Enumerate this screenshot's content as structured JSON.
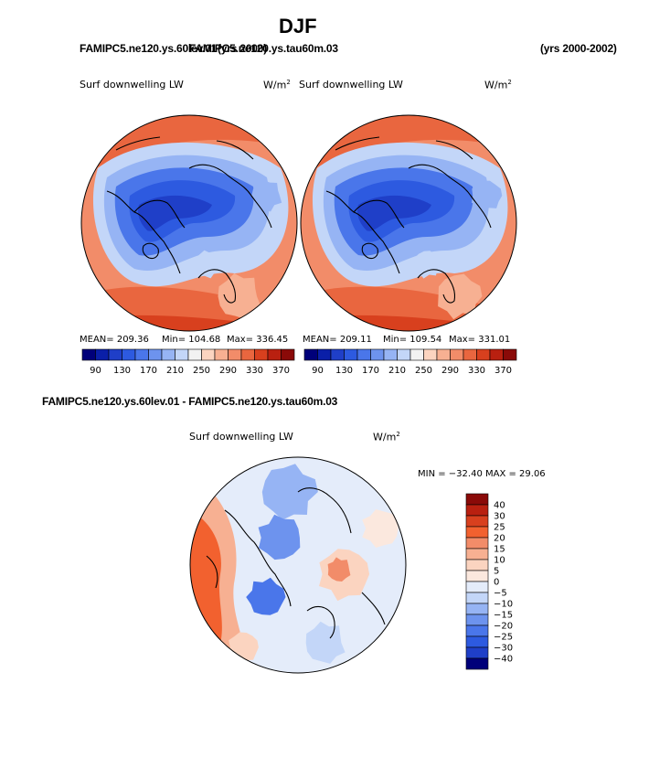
{
  "title": "DJF",
  "header": {
    "left_a": "FAMIPC5.ne120.ys.60lev.01",
    "left_b": "FAMIPC5.ne120.ys.tau60m.03",
    "left_c": "(yrs 2000)",
    "right": "(yrs 2000-2002)"
  },
  "diff_title": "FAMIPC5.ne120.ys.60lev.01 - FAMIPC5.ne120.ys.tau60m.03",
  "chart_data": [
    {
      "type": "heatmap",
      "projection": "north-polar-stereographic",
      "title": "Surf downwelling LW",
      "units": "W/m",
      "units_sup": "2",
      "stats": {
        "mean": "MEAN= 209.36",
        "min": "Min= 104.68",
        "max": "Max= 336.45"
      },
      "colorbar": {
        "levels": [
          90,
          110,
          130,
          150,
          170,
          190,
          210,
          230,
          250,
          270,
          290,
          310,
          330,
          350,
          370
        ],
        "tick_labels": [
          "90",
          "130",
          "170",
          "210",
          "250",
          "290",
          "330",
          "370"
        ],
        "colors": [
          "#00007a",
          "#0a1fa8",
          "#1f3fc8",
          "#2d5ae0",
          "#4a76ea",
          "#6d93ee",
          "#96b4f4",
          "#c3d6f8",
          "#f2f2f2",
          "#fbd4c0",
          "#f7b092",
          "#f28c69",
          "#e9663f",
          "#d8401e",
          "#b92010",
          "#8a0a08"
        ]
      }
    },
    {
      "type": "heatmap",
      "projection": "north-polar-stereographic",
      "title": "Surf downwelling LW",
      "units": "W/m",
      "units_sup": "2",
      "stats": {
        "mean": "MEAN= 209.11",
        "min": "Min= 109.54",
        "max": "Max= 331.01"
      },
      "colorbar": {
        "levels": [
          90,
          110,
          130,
          150,
          170,
          190,
          210,
          230,
          250,
          270,
          290,
          310,
          330,
          350,
          370
        ],
        "tick_labels": [
          "90",
          "130",
          "170",
          "210",
          "250",
          "290",
          "330",
          "370"
        ],
        "colors": [
          "#00007a",
          "#0a1fa8",
          "#1f3fc8",
          "#2d5ae0",
          "#4a76ea",
          "#6d93ee",
          "#96b4f4",
          "#c3d6f8",
          "#f2f2f2",
          "#fbd4c0",
          "#f7b092",
          "#f28c69",
          "#e9663f",
          "#d8401e",
          "#b92010",
          "#8a0a08"
        ]
      }
    },
    {
      "type": "heatmap",
      "projection": "north-polar-stereographic",
      "title": "Surf downwelling LW",
      "units": "W/m",
      "units_sup": "2",
      "minmax": "MIN = −32.40 MAX =  29.06",
      "colorbar": {
        "orientation": "vertical",
        "tick_labels": [
          "40",
          "30",
          "25",
          "20",
          "15",
          "10",
          "5",
          "0",
          "−5",
          "−10",
          "−15",
          "−20",
          "−25",
          "−30",
          "−40"
        ],
        "colors": [
          "#8a0a08",
          "#b92010",
          "#d8401e",
          "#f2612f",
          "#f28c69",
          "#f7b092",
          "#fbd4c0",
          "#fbe8de",
          "#e4ecfa",
          "#c3d6f8",
          "#96b4f4",
          "#6d93ee",
          "#4a76ea",
          "#2d5ae0",
          "#1f3fc8",
          "#00007a"
        ]
      }
    }
  ]
}
